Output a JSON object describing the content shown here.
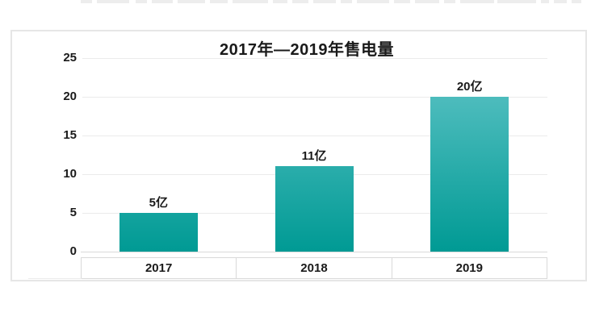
{
  "chart_data": {
    "type": "bar",
    "title": "2017年—2019年售电量",
    "categories": [
      "2017",
      "2018",
      "2019"
    ],
    "values": [
      5,
      11,
      20
    ],
    "data_labels": [
      "5亿",
      "11亿",
      "20亿"
    ],
    "unit": "亿",
    "xlabel": "",
    "ylabel": "",
    "ylim": [
      0,
      25
    ],
    "ytick_step": 5,
    "yticks": [
      25,
      20,
      15,
      10,
      5,
      0
    ],
    "grid": true,
    "legend": "none",
    "colors": {
      "bar_gradient_top": "#4dbcbd",
      "bar_gradient_bottom": "#009a94",
      "gridline": "#ebebeb",
      "axis_line": "#d9d9d9",
      "text": "#1a1a1a",
      "panel_border": "#e6e6e6",
      "background": "#ffffff"
    }
  }
}
